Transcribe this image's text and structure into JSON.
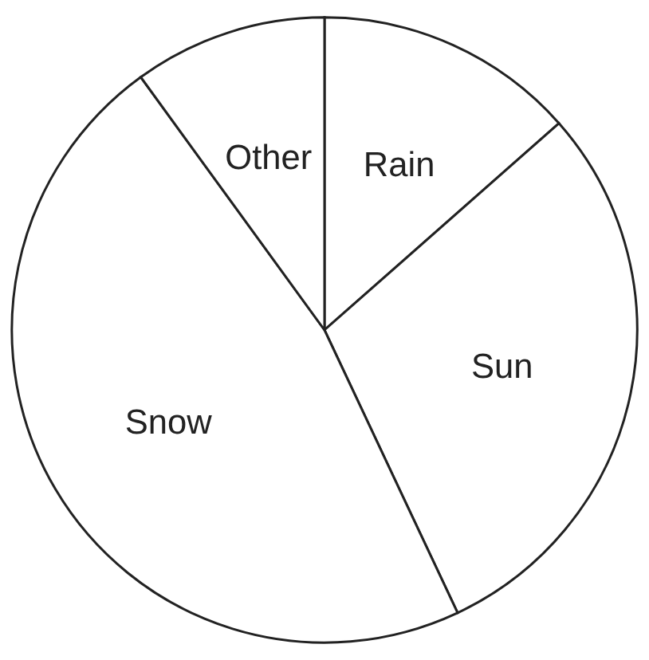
{
  "chart_data": {
    "type": "pie",
    "categories": [
      "Rain",
      "Sun",
      "Snow",
      "Other"
    ],
    "values": [
      13.5,
      29.5,
      47,
      10
    ],
    "colors": [
      "#ffffff",
      "#ffffff",
      "#ffffff",
      "#ffffff"
    ],
    "legend": false
  }
}
